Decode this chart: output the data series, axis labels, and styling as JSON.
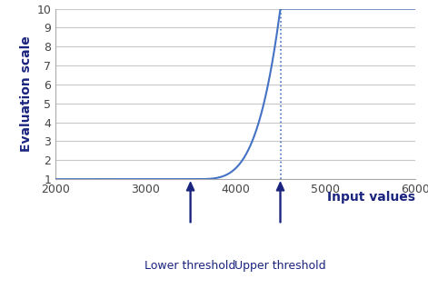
{
  "xlim": [
    2000,
    6000
  ],
  "ylim": [
    1,
    10
  ],
  "xticks": [
    2000,
    3000,
    4000,
    5000,
    6000
  ],
  "yticks": [
    1,
    2,
    3,
    4,
    5,
    6,
    7,
    8,
    9,
    10
  ],
  "xlabel": "Input values",
  "ylabel": "Evaluation scale",
  "curve_color": "#4472c4",
  "lower_threshold": 3500,
  "upper_threshold": 4500,
  "lower_label": "Lower threshold",
  "upper_label": "Upper threshold",
  "arrow_color": "#1a237e",
  "dotted_line_color": "#4472c4",
  "power": 4,
  "y_min": 1,
  "y_max": 10,
  "background_color": "#ffffff",
  "grid_color": "#c8c8c8",
  "label_color": "#1a237e",
  "axis_label_fontsize": 10,
  "tick_fontsize": 9
}
